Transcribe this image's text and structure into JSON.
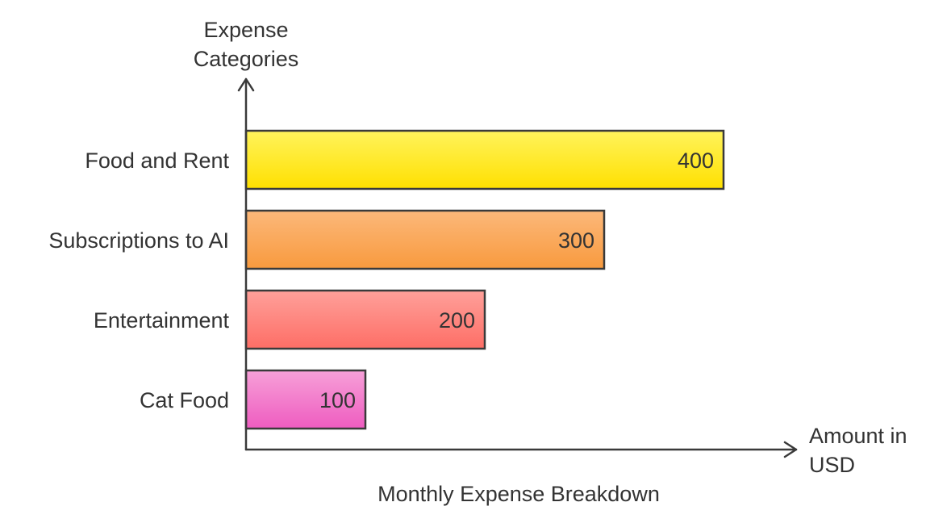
{
  "chart_data": {
    "type": "bar",
    "orientation": "horizontal",
    "title": "Monthly Expense Breakdown",
    "xlabel": [
      "Amount in",
      "USD"
    ],
    "ylabel": [
      "Expense",
      "Categories"
    ],
    "categories": [
      "Food and Rent",
      "Subscriptions to AI",
      "Entertainment",
      "Cat Food"
    ],
    "values": [
      400,
      300,
      200,
      100
    ],
    "value_labels": [
      "400",
      "300",
      "200",
      "100"
    ],
    "xlim": [
      0,
      400
    ],
    "grid": false,
    "legend": "none",
    "bar_colors": [
      {
        "top": "#fff35c",
        "bottom": "#ffe000"
      },
      {
        "top": "#fcb87a",
        "bottom": "#f89a3e"
      },
      {
        "top": "#ffa09a",
        "bottom": "#fd6e66"
      },
      {
        "top": "#f7a0d8",
        "bottom": "#ee5cc0"
      }
    ],
    "axis_color": "#3a3a3a",
    "text_color": "#333333"
  }
}
